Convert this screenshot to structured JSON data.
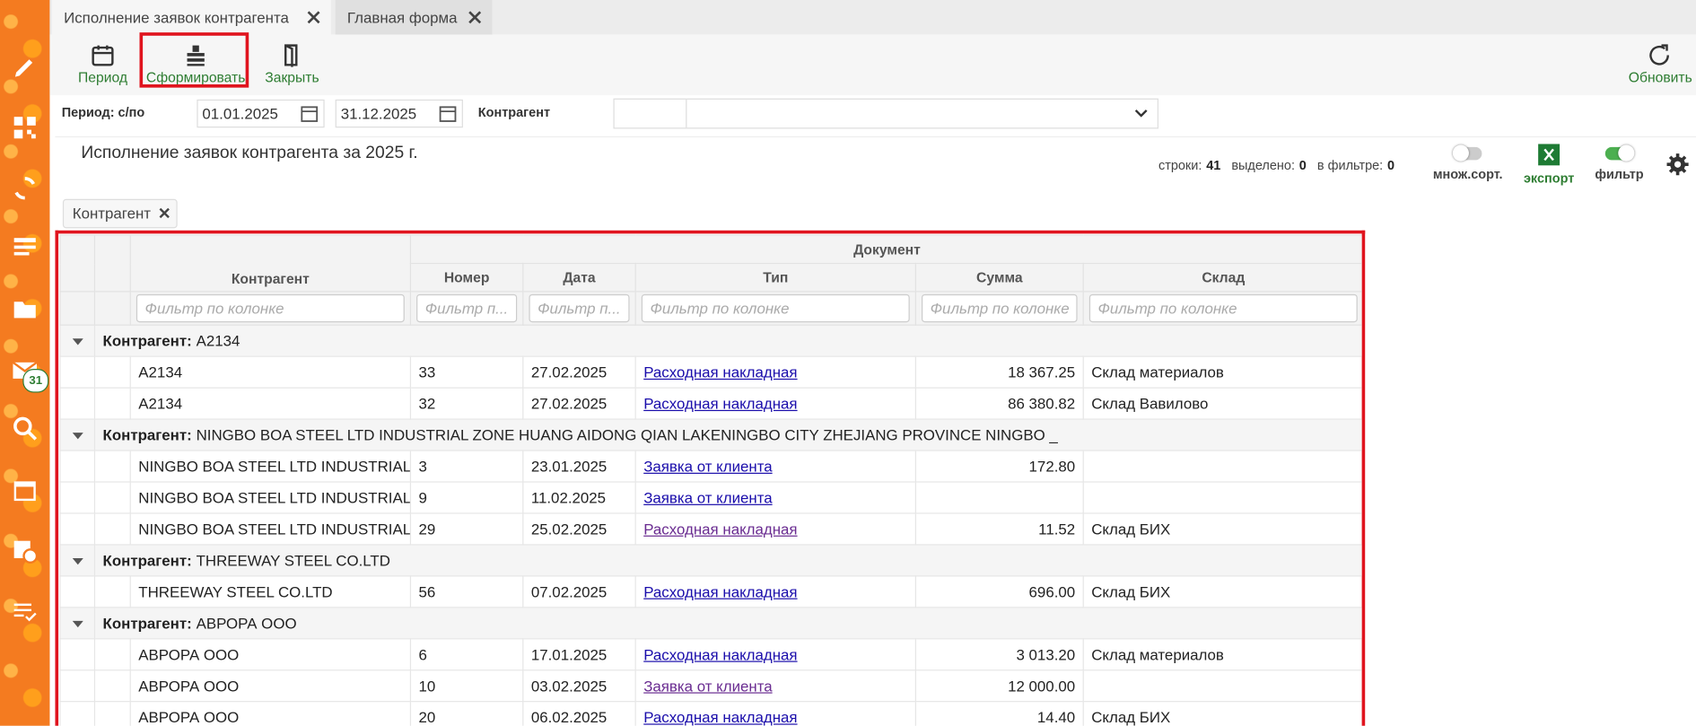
{
  "tabs": [
    {
      "title": "Исполнение заявок контрагента",
      "active": true
    },
    {
      "title": "Главная форма",
      "active": false
    }
  ],
  "sidebar": {
    "mail_badge": "31"
  },
  "toolbar": {
    "buttons": [
      "Период",
      "Сформировать",
      "Закрыть"
    ],
    "refresh": "Обновить"
  },
  "filters": {
    "period_label": "Период: с/по",
    "date_from": "01.01.2025",
    "date_to": "31.12.2025",
    "counterparty_label": "Контрагент"
  },
  "report": {
    "title": "Исполнение заявок контрагента за 2025 г.",
    "stats": [
      {
        "label": "строки:",
        "value": "41"
      },
      {
        "label": "выделено:",
        "value": "0"
      },
      {
        "label": "в фильтре:",
        "value": "0"
      }
    ],
    "switches": [
      {
        "label": "множ.сорт.",
        "on": false
      },
      {
        "label": "экспорт"
      },
      {
        "label": "фильтр",
        "on": true
      }
    ],
    "group_chip": "Контрагент"
  },
  "table": {
    "group_header": "Документ",
    "columns": [
      "Контрагент",
      "Номер",
      "Дата",
      "Тип",
      "Сумма",
      "Склад"
    ],
    "filter_placeholders": [
      "Фильтр по колонке",
      "Фильтр п...",
      "Фильтр п...",
      "Фильтр по колонке",
      "Фильтр по колонке",
      "Фильтр по колонке"
    ],
    "group_label": "Контрагент:",
    "groups": [
      {
        "value": "A2134",
        "rows": [
          {
            "cells": [
              "A2134",
              "33",
              "27.02.2025",
              "Расходная накладная",
              "18 367.25",
              "Склад материалов"
            ],
            "visited": false
          },
          {
            "cells": [
              "A2134",
              "32",
              "27.02.2025",
              "Расходная накладная",
              "86 380.82",
              "Склад Вавилово"
            ],
            "visited": false
          }
        ]
      },
      {
        "value": "NINGBO BOA STEEL LTD INDUSTRIAL ZONE HUANG AIDONG QIAN LAKENINGBO CITY ZHEJIANG PROVINCE NINGBO _",
        "rows": [
          {
            "cells": [
              "NINGBO BOA STEEL LTD INDUSTRIAL...",
              "3",
              "23.01.2025",
              "Заявка от клиента",
              "172.80",
              null
            ],
            "visited": false
          },
          {
            "cells": [
              "NINGBO BOA STEEL LTD INDUSTRIAL...",
              "9",
              "11.02.2025",
              "Заявка от клиента",
              null,
              null
            ],
            "visited": false
          },
          {
            "cells": [
              "NINGBO BOA STEEL LTD INDUSTRIAL...",
              "29",
              "25.02.2025",
              "Расходная накладная",
              "11.52",
              "Склад БИХ"
            ],
            "visited": true
          }
        ]
      },
      {
        "value": "THREEWAY STEEL CO.LTD",
        "rows": [
          {
            "cells": [
              "THREEWAY STEEL CO.LTD",
              "56",
              "07.02.2025",
              "Расходная накладная",
              "696.00",
              "Склад БИХ"
            ],
            "visited": false
          }
        ]
      },
      {
        "value": "АВРОРА ООО",
        "rows": [
          {
            "cells": [
              "АВРОРА ООО",
              "6",
              "17.01.2025",
              "Расходная накладная",
              "3 013.20",
              "Склад материалов"
            ],
            "visited": false
          },
          {
            "cells": [
              "АВРОРА ООО",
              "10",
              "03.02.2025",
              "Заявка от клиента",
              "12 000.00",
              null
            ],
            "visited": true
          },
          {
            "cells": [
              "АВРОРА ООО",
              "20",
              "06.02.2025",
              "Расходная накладная",
              "14.40",
              "Склад БИХ"
            ],
            "visited": false
          }
        ]
      }
    ]
  }
}
